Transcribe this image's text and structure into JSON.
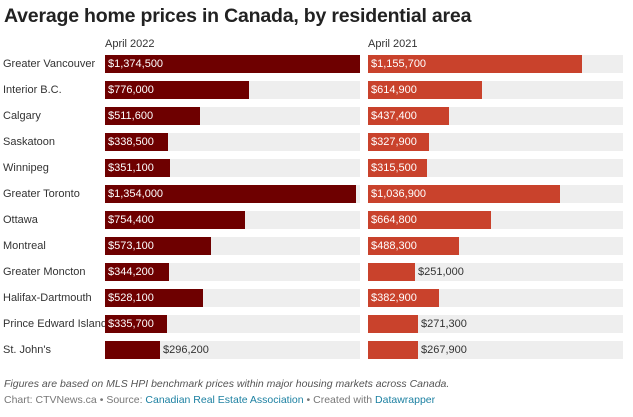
{
  "colors": {
    "april_2022": "#6e0000",
    "april_2021": "#c9422c",
    "track": "#eeeeee",
    "link": "#1d81a2"
  },
  "chart_data": {
    "type": "bar",
    "title": "Average home prices in Canada, by residential area",
    "orientation": "horizontal",
    "layout": "side-by-side panels",
    "categories": [
      "Greater Vancouver",
      "Interior B.C.",
      "Calgary",
      "Saskatoon",
      "Winnipeg",
      "Greater Toronto",
      "Ottawa",
      "Montreal",
      "Greater Moncton",
      "Halifax-Dartmouth",
      "Prince Edward Island",
      "St. John's"
    ],
    "series": [
      {
        "name": "April 2022",
        "values": [
          1374500,
          776000,
          511600,
          338500,
          351100,
          1354000,
          754400,
          573100,
          344200,
          528100,
          335700,
          296200
        ],
        "labels": [
          "$1,374,500",
          "$776,000",
          "$511,600",
          "$338,500",
          "$351,100",
          "$1,354,000",
          "$754,400",
          "$573,100",
          "$344,200",
          "$528,100",
          "$335,700",
          "$296,200"
        ]
      },
      {
        "name": "April 2021",
        "values": [
          1155700,
          614900,
          437400,
          327900,
          315500,
          1036900,
          664800,
          488300,
          251000,
          382900,
          271300,
          267900
        ],
        "labels": [
          "$1,155,700",
          "$614,900",
          "$437,400",
          "$327,900",
          "$315,500",
          "$1,036,900",
          "$664,800",
          "$488,300",
          "$251,000",
          "$382,900",
          "$271,300",
          "$267,900"
        ]
      }
    ],
    "xlim": [
      0,
      1374500
    ],
    "note": "Figures are based on MLS HPI benchmark prices within major housing markets across Canada."
  },
  "footer": {
    "note": "Figures are based on MLS HPI benchmark prices within major housing markets across Canada.",
    "chart_prefix": "Chart: CTVNews.ca",
    "source_prefix": "Source:",
    "source_name": "Canadian Real Estate Association",
    "created_prefix": "Created with",
    "created_tool": "Datawrapper",
    "separator": "•"
  }
}
